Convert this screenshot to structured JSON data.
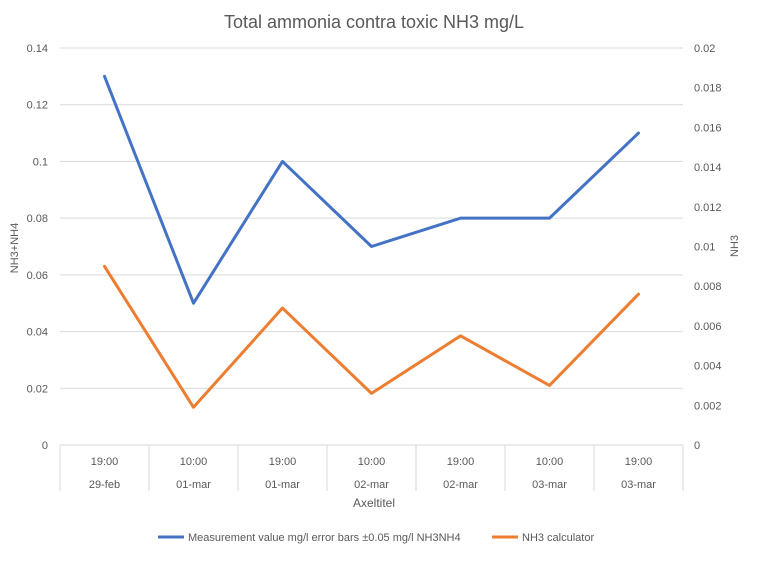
{
  "chart_data": {
    "type": "line",
    "title": "Total ammonia contra toxic NH3 mg/L",
    "xlabel": "Axeltitel",
    "ylabel_left": "NH3+NH4",
    "ylabel_right": "NH3",
    "categories": [
      {
        "time": "19:00",
        "date": "29-feb"
      },
      {
        "time": "10:00",
        "date": "01-mar"
      },
      {
        "time": "19:00",
        "date": "01-mar"
      },
      {
        "time": "10:00",
        "date": "02-mar"
      },
      {
        "time": "19:00",
        "date": "02-mar"
      },
      {
        "time": "10:00",
        "date": "03-mar"
      },
      {
        "time": "19:00",
        "date": "03-mar"
      }
    ],
    "y_left": {
      "lim": [
        0,
        0.14
      ],
      "ticks": [
        "0",
        "0.02",
        "0.04",
        "0.06",
        "0.08",
        "0.1",
        "0.12",
        "0.14"
      ]
    },
    "y_right": {
      "lim": [
        0,
        0.02
      ],
      "ticks": [
        "0",
        "0.002",
        "0.004",
        "0.006",
        "0.008",
        "0.01",
        "0.012",
        "0.014",
        "0.016",
        "0.018",
        "0.02"
      ]
    },
    "series": [
      {
        "name": "Measurement value mg/l error bars ±0.05 mg/l NH3NH4",
        "axis": "left",
        "color": "#4472c4",
        "values": [
          0.13,
          0.05,
          0.1,
          0.07,
          0.08,
          0.08,
          0.11
        ]
      },
      {
        "name": "NH3 calculator",
        "axis": "right",
        "color": "#ed7d31",
        "values": [
          0.009,
          0.0019,
          0.0069,
          0.0026,
          0.0055,
          0.003,
          0.0076
        ]
      }
    ],
    "grid": true,
    "legend": "bottom"
  }
}
